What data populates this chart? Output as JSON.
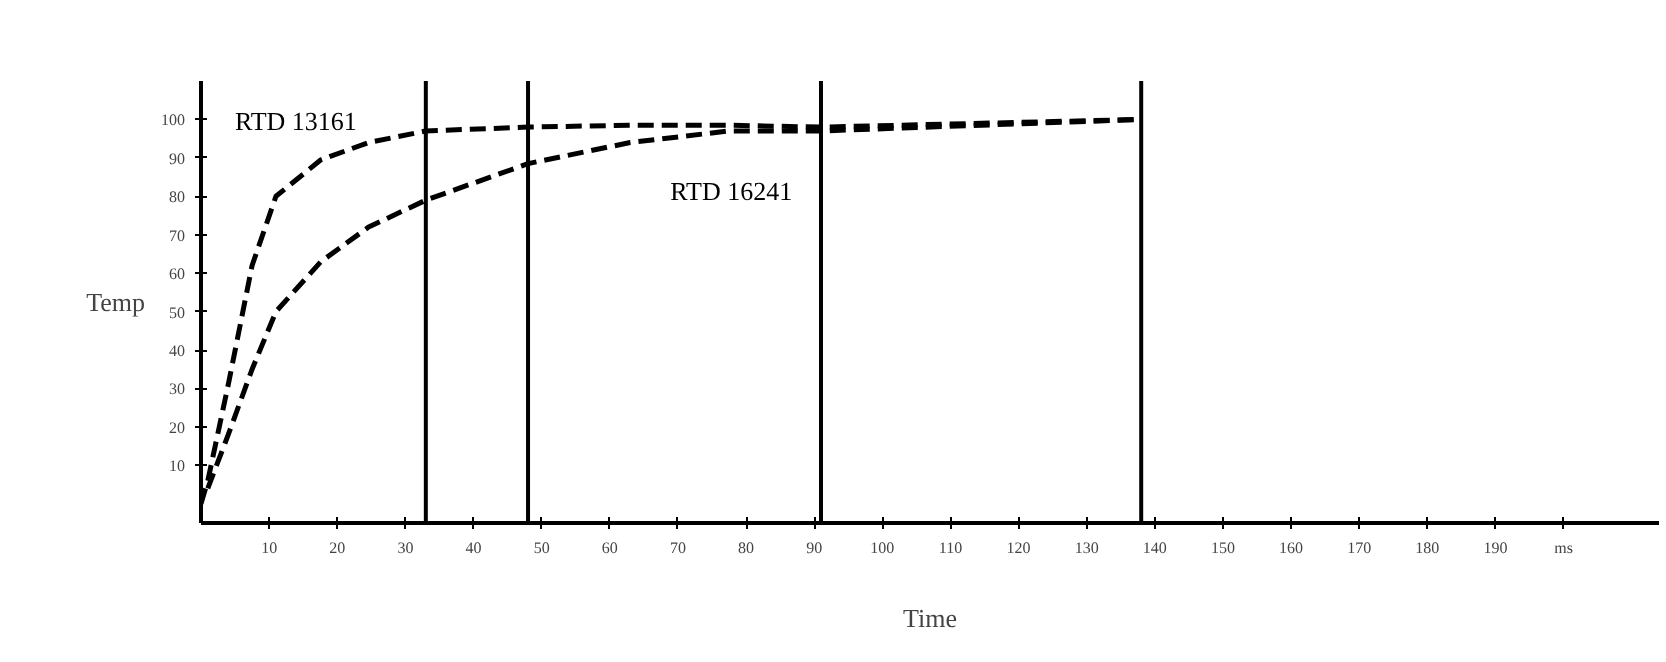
{
  "chart_data": {
    "type": "line",
    "xlabel": "Time",
    "ylabel": "Temp",
    "x": [
      0,
      1,
      4,
      7.5,
      11,
      17.6,
      24.6,
      33,
      48,
      63,
      77.5,
      91,
      138
    ],
    "series": [
      {
        "name": "RTD 13161",
        "color": "#000000",
        "values": [
          0,
          6,
          31,
          62,
          80,
          89.5,
          94,
          97,
          98,
          98.5,
          98.5,
          98,
          100
        ]
      },
      {
        "name": "RTD 16241",
        "color": "#000000",
        "values": [
          null,
          4,
          18,
          35,
          50,
          63,
          72,
          79,
          88.5,
          94,
          97,
          97,
          100
        ]
      }
    ],
    "xlim": [
      0,
      214
    ],
    "ylim": [
      -5,
      110
    ],
    "xticks": [
      10,
      20,
      30,
      40,
      50,
      60,
      70,
      80,
      90,
      100,
      110,
      120,
      130,
      140,
      150,
      160,
      170,
      180,
      190,
      {
        "value": 200,
        "label": "ms"
      }
    ],
    "yticks": [
      10,
      20,
      30,
      40,
      50,
      60,
      70,
      80,
      90,
      100
    ],
    "ref_lines": [
      {
        "axis": "x",
        "value": 33,
        "color": "#000000"
      },
      {
        "axis": "x",
        "value": 48,
        "color": "#000000"
      },
      {
        "axis": "x",
        "value": 91,
        "color": "#000000"
      },
      {
        "axis": "x",
        "value": 138,
        "color": "#000000"
      }
    ],
    "grid": false,
    "legend": false,
    "line_style": "dashed"
  }
}
